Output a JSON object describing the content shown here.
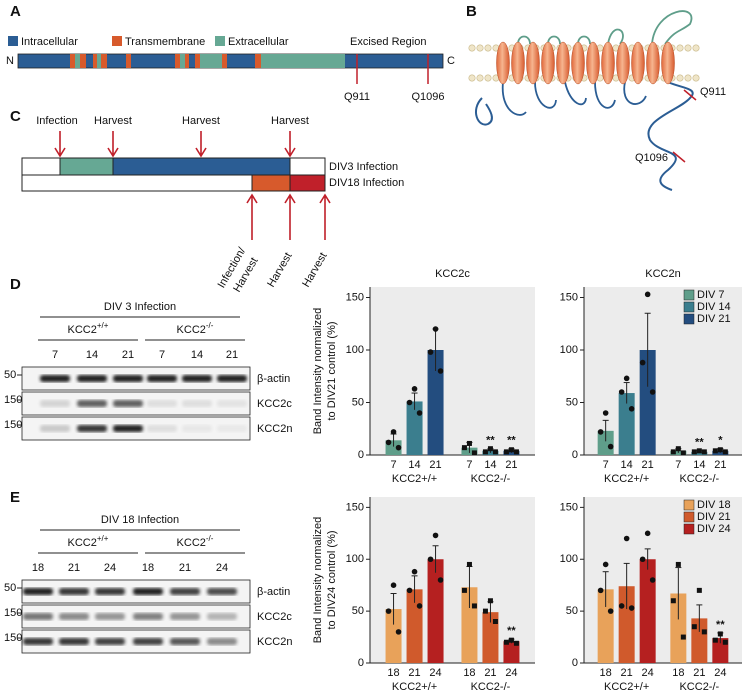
{
  "panel_a": {
    "label": "A",
    "legend": [
      "Intracellular",
      "Transmembrane",
      "Extracellular"
    ],
    "excised": "Excised Region",
    "n": "N",
    "c": "C",
    "sites": [
      "Q911",
      "Q1096"
    ]
  },
  "panel_b": {
    "label": "B",
    "sites": [
      "Q911",
      "Q1096"
    ]
  },
  "panel_c": {
    "label": "C",
    "top_arrows": [
      "Infection",
      "Harvest",
      "Harvest",
      "Harvest"
    ],
    "rows": [
      "DIV3 Infection",
      "DIV18 Infection"
    ],
    "bottom_arrows": [
      "Infection/",
      "Harvest",
      "Harvest",
      "Harvest"
    ]
  },
  "panel_d": {
    "label": "D",
    "title": "DIV 3 Infection",
    "genotypes": [
      {
        "name": "KCC2",
        "sup": "+/+"
      },
      {
        "name": "KCC2",
        "sup": "-/-"
      }
    ],
    "lanes": [
      "7",
      "14",
      "21",
      "7",
      "14",
      "21"
    ],
    "rows": [
      {
        "marker": "50",
        "protein": "β-actin"
      },
      {
        "marker": "150",
        "protein": "KCC2c"
      },
      {
        "marker": "150",
        "protein": "KCC2n"
      }
    ]
  },
  "panel_e": {
    "label": "E",
    "title": "DIV 18 Infection",
    "genotypes": [
      {
        "name": "KCC2",
        "sup": "+/+"
      },
      {
        "name": "KCC2",
        "sup": "-/-"
      }
    ],
    "lanes": [
      "18",
      "21",
      "24",
      "18",
      "21",
      "24"
    ],
    "rows": [
      {
        "marker": "50",
        "protein": "β-actin"
      },
      {
        "marker": "150",
        "protein": "KCC2c"
      },
      {
        "marker": "150",
        "protein": "KCC2n"
      }
    ]
  },
  "chart_data": [
    {
      "type": "bar",
      "title": "KCC2c",
      "ylabel": [
        "Band Intensity normalized",
        "to DIV21 control (%)"
      ],
      "categories": [
        "KCC2+/+",
        "KCC2-/-"
      ],
      "markers": [
        "circle",
        "square"
      ],
      "ylim": [
        0,
        160
      ],
      "yticks": [
        0,
        50,
        100,
        150
      ],
      "legend": false,
      "series": [
        {
          "name": "DIV 7",
          "bar_label": "7",
          "color": "#5f9e8a",
          "values": [
            14,
            7
          ],
          "errors": [
            6,
            5
          ],
          "points": [
            [
              22,
              12,
              7
            ],
            [
              11,
              7,
              2
            ]
          ],
          "significance": [
            null,
            null
          ]
        },
        {
          "name": "DIV 14",
          "bar_label": "14",
          "color": "#3b7e8e",
          "values": [
            51,
            4
          ],
          "errors": [
            8,
            2
          ],
          "points": [
            [
              63,
              50,
              40
            ],
            [
              6,
              3,
              3
            ]
          ],
          "significance": [
            null,
            "**"
          ]
        },
        {
          "name": "DIV 21",
          "bar_label": "21",
          "color": "#234d7f",
          "values": [
            100,
            4
          ],
          "errors": [
            20,
            2
          ],
          "points": [
            [
              120,
              98,
              80
            ],
            [
              5,
              3,
              3
            ]
          ],
          "significance": [
            null,
            "**"
          ]
        }
      ]
    },
    {
      "type": "bar",
      "title": "KCC2n",
      "categories": [
        "KCC2+/+",
        "KCC2-/-"
      ],
      "markers": [
        "circle",
        "square"
      ],
      "ylim": [
        0,
        160
      ],
      "yticks": [
        0,
        50,
        100,
        150
      ],
      "legend": "top-right",
      "series": [
        {
          "name": "DIV 7",
          "bar_label": "7",
          "color": "#5f9e8a",
          "values": [
            23,
            4
          ],
          "errors": [
            10,
            2
          ],
          "points": [
            [
              40,
              22,
              8
            ],
            [
              6,
              3,
              2
            ]
          ],
          "significance": [
            null,
            null
          ]
        },
        {
          "name": "DIV 14",
          "bar_label": "14",
          "color": "#3b7e8e",
          "values": [
            59,
            3
          ],
          "errors": [
            10,
            1
          ],
          "points": [
            [
              73,
              60,
              44
            ],
            [
              4,
              3,
              3
            ]
          ],
          "significance": [
            null,
            "**"
          ]
        },
        {
          "name": "DIV 21",
          "bar_label": "21",
          "color": "#234d7f",
          "values": [
            100,
            4
          ],
          "errors": [
            35,
            2
          ],
          "points": [
            [
              153,
              88,
              60
            ],
            [
              5,
              4,
              3
            ]
          ],
          "significance": [
            null,
            "*"
          ]
        }
      ]
    },
    {
      "type": "bar",
      "ylabel": [
        "Band Intensity normalized",
        "to DIV24 control (%)"
      ],
      "categories": [
        "KCC2+/+",
        "KCC2-/-"
      ],
      "markers": [
        "circle",
        "square"
      ],
      "ylim": [
        0,
        160
      ],
      "yticks": [
        0,
        50,
        100,
        150
      ],
      "legend": false,
      "series": [
        {
          "name": "DIV 18",
          "bar_label": "18",
          "color": "#e8a25a",
          "values": [
            52,
            73
          ],
          "errors": [
            15,
            20
          ],
          "points": [
            [
              75,
              50,
              30
            ],
            [
              95,
              70,
              55
            ]
          ],
          "significance": [
            null,
            null
          ]
        },
        {
          "name": "DIV 21",
          "bar_label": "21",
          "color": "#d05a2c",
          "values": [
            71,
            49
          ],
          "errors": [
            13,
            10
          ],
          "points": [
            [
              88,
              70,
              55
            ],
            [
              60,
              50,
              40
            ]
          ],
          "significance": [
            null,
            null
          ]
        },
        {
          "name": "DIV 24",
          "bar_label": "24",
          "color": "#b52020",
          "values": [
            100,
            21
          ],
          "errors": [
            13,
            2
          ],
          "points": [
            [
              123,
              100,
              80
            ],
            [
              22,
              20,
              19
            ]
          ],
          "significance": [
            null,
            "**"
          ]
        }
      ]
    },
    {
      "type": "bar",
      "categories": [
        "KCC2+/+",
        "KCC2-/-"
      ],
      "markers": [
        "circle",
        "square"
      ],
      "ylim": [
        0,
        160
      ],
      "yticks": [
        0,
        50,
        100,
        150
      ],
      "legend": "top-right",
      "series": [
        {
          "name": "DIV 18",
          "bar_label": "18",
          "color": "#e8a25a",
          "values": [
            71,
            67
          ],
          "errors": [
            17,
            25
          ],
          "points": [
            [
              95,
              70,
              50
            ],
            [
              95,
              60,
              25
            ]
          ],
          "significance": [
            null,
            null
          ]
        },
        {
          "name": "DIV 21",
          "bar_label": "21",
          "color": "#d05a2c",
          "values": [
            74,
            43
          ],
          "errors": [
            22,
            13
          ],
          "points": [
            [
              120,
              55,
              53
            ],
            [
              70,
              35,
              30
            ]
          ],
          "significance": [
            null,
            null
          ]
        },
        {
          "name": "DIV 24",
          "bar_label": "24",
          "color": "#b52020",
          "values": [
            100,
            24
          ],
          "errors": [
            10,
            5
          ],
          "points": [
            [
              125,
              100,
              80
            ],
            [
              28,
              22,
              20
            ]
          ],
          "significance": [
            null,
            "**"
          ]
        }
      ]
    }
  ]
}
